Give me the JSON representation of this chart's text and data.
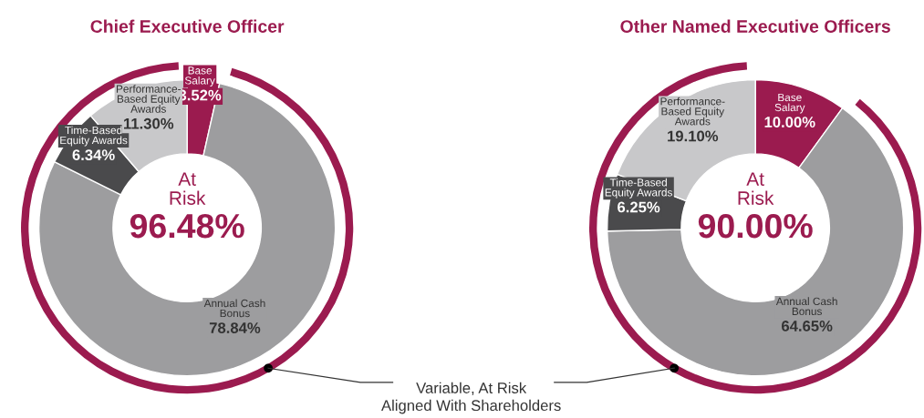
{
  "chart_data": [
    {
      "type": "donut",
      "title": "Chief Executive Officer",
      "categories": [
        "Base\nSalary",
        "Annual Cash\nBonus",
        "Time-Based\nEquity Awards",
        "Performance-\nBased Equity\nAwards"
      ],
      "values": [
        3.52,
        78.84,
        6.34,
        11.3
      ],
      "value_labels": [
        "3.52%",
        "78.84%",
        "6.34%",
        "11.30%"
      ],
      "colors": [
        "#9b1b4f",
        "#9d9d9f",
        "#4a4a4c",
        "#c8c8ca"
      ],
      "annotations": [
        "At\nRisk",
        "96.48%",
        "Variable, At Risk\nAligned With Shareholders"
      ]
    },
    {
      "type": "donut",
      "title": "Other Named Executive Officers",
      "categories": [
        "Base\nSalary",
        "Annual Cash\nBonus",
        "Time-Based\nEquity Awards",
        "Performance-\nBased Equity\nAwards"
      ],
      "values": [
        10.0,
        64.65,
        6.25,
        19.1
      ],
      "value_labels": [
        "10.00%",
        "64.65%",
        "6.25%",
        "19.10%"
      ],
      "colors": [
        "#9b1b4f",
        "#9d9d9f",
        "#4a4a4c",
        "#c8c8ca"
      ],
      "annotations": [
        "At\nRisk",
        "90.00%"
      ]
    }
  ]
}
